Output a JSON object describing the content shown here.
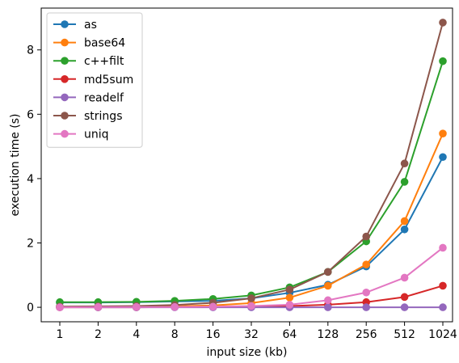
{
  "chart_data": {
    "type": "line",
    "xlabel": "input size (kb)",
    "ylabel": "execution time (s)",
    "x_scale": "log2",
    "categories": [
      "1",
      "2",
      "4",
      "8",
      "16",
      "32",
      "64",
      "128",
      "256",
      "512",
      "1024"
    ],
    "ylim": [
      -0.45,
      9.3
    ],
    "yticks": [
      0,
      2,
      4,
      6,
      8
    ],
    "grid": false,
    "legend_position": "upper-left",
    "series": [
      {
        "name": "as",
        "color": "#1f77b4",
        "values": [
          0.15,
          0.15,
          0.16,
          0.18,
          0.2,
          0.28,
          0.45,
          0.7,
          1.27,
          2.42,
          4.67
        ]
      },
      {
        "name": "base64",
        "color": "#ff7f0e",
        "values": [
          0.01,
          0.01,
          0.02,
          0.03,
          0.06,
          0.13,
          0.3,
          0.67,
          1.33,
          2.68,
          5.4
        ]
      },
      {
        "name": "c++filt",
        "color": "#2ca02c",
        "values": [
          0.16,
          0.16,
          0.17,
          0.2,
          0.26,
          0.37,
          0.62,
          1.1,
          2.05,
          3.9,
          7.65
        ]
      },
      {
        "name": "md5sum",
        "color": "#d62728",
        "values": [
          0.0,
          0.0,
          0.0,
          0.01,
          0.01,
          0.02,
          0.04,
          0.08,
          0.16,
          0.32,
          0.67
        ]
      },
      {
        "name": "readelf",
        "color": "#9467bd",
        "values": [
          0.0,
          0.0,
          0.0,
          0.0,
          0.0,
          0.0,
          0.0,
          0.0,
          0.0,
          0.0,
          0.0
        ]
      },
      {
        "name": "strings",
        "color": "#8c564b",
        "values": [
          0.02,
          0.03,
          0.04,
          0.07,
          0.14,
          0.28,
          0.55,
          1.1,
          2.2,
          4.47,
          8.85
        ]
      },
      {
        "name": "uniq",
        "color": "#e377c2",
        "values": [
          0.0,
          0.01,
          0.01,
          0.01,
          0.02,
          0.04,
          0.08,
          0.22,
          0.46,
          0.92,
          1.85
        ]
      }
    ]
  }
}
